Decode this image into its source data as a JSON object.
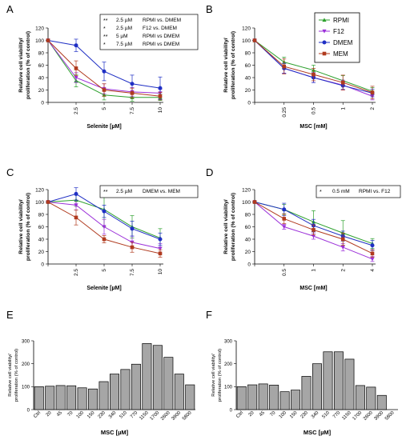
{
  "colors": {
    "RPMI": "#2ca02c",
    "F12": "#9b30d9",
    "DMEM": "#1f2fc4",
    "MEM": "#b03a1e",
    "bar": "#a6a6a6"
  },
  "chart_data": [
    {
      "id": "A",
      "panel_label": "A",
      "type": "line",
      "x": [
        "0",
        "2.5",
        "5",
        "7.5",
        "10"
      ],
      "xlabel": "Selenite [µM]",
      "ylabel": "Relative cell viability/\nproliferation (% of control)",
      "ylim": [
        0,
        120
      ],
      "yticks": [
        0,
        20,
        40,
        60,
        80,
        100,
        120
      ],
      "xticklabels": [
        "",
        "2.5",
        "5",
        "7.5",
        "10"
      ],
      "series": [
        {
          "name": "RPMI",
          "values": [
            100,
            35,
            12,
            8,
            8
          ],
          "errors": [
            0,
            10,
            8,
            6,
            5
          ]
        },
        {
          "name": "F12",
          "values": [
            100,
            40,
            22,
            17,
            15
          ],
          "errors": [
            0,
            8,
            8,
            7,
            6
          ]
        },
        {
          "name": "DMEM",
          "values": [
            100,
            92,
            50,
            30,
            23
          ],
          "errors": [
            0,
            10,
            15,
            14,
            18
          ]
        },
        {
          "name": "MEM",
          "values": [
            100,
            55,
            20,
            15,
            10
          ],
          "errors": [
            0,
            12,
            10,
            8,
            6
          ]
        }
      ],
      "annotations": [
        {
          "stars": "**",
          "dose": "2.5 µM",
          "comparison": "RPMI vs. DMEM"
        },
        {
          "stars": "*",
          "dose": "2.5 µM",
          "comparison": "F12 vs. DMEM"
        },
        {
          "stars": "**",
          "dose": "5 µM",
          "comparison": "RPMI vs DMEM"
        },
        {
          "stars": "*",
          "dose": "7.5 µM",
          "comparison": "RPMI vs DMEM"
        }
      ]
    },
    {
      "id": "B",
      "panel_label": "B",
      "type": "line",
      "x": [
        "0",
        "0.25",
        "0.5",
        "1",
        "2"
      ],
      "xlabel": "MSC [mM]",
      "ylabel": "Relative cell viability/\nproliferation (% of control)",
      "ylim": [
        0,
        120
      ],
      "yticks": [
        0,
        20,
        40,
        60,
        80,
        100,
        120
      ],
      "xticklabels": [
        "",
        "0.25",
        "0.5",
        "1",
        "2"
      ],
      "legend": [
        "RPMI",
        "F12",
        "DMEM",
        "MEM"
      ],
      "series": [
        {
          "name": "RPMI",
          "values": [
            100,
            65,
            52,
            35,
            18
          ],
          "errors": [
            0,
            8,
            8,
            8,
            6
          ]
        },
        {
          "name": "F12",
          "values": [
            100,
            55,
            40,
            28,
            10
          ],
          "errors": [
            0,
            8,
            8,
            8,
            6
          ]
        },
        {
          "name": "DMEM",
          "values": [
            100,
            55,
            40,
            27,
            15
          ],
          "errors": [
            0,
            8,
            8,
            6,
            6
          ]
        },
        {
          "name": "MEM",
          "values": [
            100,
            58,
            45,
            32,
            16
          ],
          "errors": [
            0,
            12,
            10,
            12,
            10
          ]
        }
      ],
      "annotations": []
    },
    {
      "id": "C",
      "panel_label": "C",
      "type": "line",
      "x": [
        "0",
        "2.5",
        "5",
        "7.5",
        "10"
      ],
      "xlabel": "Selenite [µM]",
      "ylabel": "Relative cell viability/\nproliferation (% of control)",
      "ylim": [
        0,
        120
      ],
      "yticks": [
        0,
        20,
        40,
        60,
        80,
        100,
        120
      ],
      "xticklabels": [
        "",
        "2.5",
        "5",
        "7.5",
        "10"
      ],
      "series": [
        {
          "name": "RPMI",
          "values": [
            100,
            103,
            88,
            60,
            42
          ],
          "errors": [
            0,
            10,
            28,
            18,
            15
          ]
        },
        {
          "name": "F12",
          "values": [
            100,
            95,
            60,
            35,
            25
          ],
          "errors": [
            0,
            8,
            12,
            10,
            8
          ]
        },
        {
          "name": "DMEM",
          "values": [
            100,
            113,
            85,
            57,
            40
          ],
          "errors": [
            0,
            10,
            10,
            12,
            10
          ]
        },
        {
          "name": "MEM",
          "values": [
            100,
            75,
            40,
            27,
            17
          ],
          "errors": [
            0,
            12,
            6,
            8,
            6
          ]
        }
      ],
      "annotations": [
        {
          "stars": "**",
          "dose": "2.5 µM",
          "comparison": "DMEM vs. MEM"
        }
      ]
    },
    {
      "id": "D",
      "panel_label": "D",
      "type": "line",
      "x": [
        "0",
        "0.5",
        "1",
        "2",
        "4"
      ],
      "xlabel": "MSC [mM]",
      "ylabel": "Relative cell viability/\nproliferation (% of control)",
      "ylim": [
        0,
        120
      ],
      "yticks": [
        0,
        20,
        40,
        60,
        80,
        100,
        120
      ],
      "xticklabels": [
        "",
        "0.5",
        "1",
        "2",
        "4"
      ],
      "series": [
        {
          "name": "RPMI",
          "values": [
            100,
            88,
            68,
            50,
            33
          ],
          "errors": [
            0,
            8,
            18,
            20,
            8
          ]
        },
        {
          "name": "F12",
          "values": [
            100,
            60,
            45,
            27,
            8
          ],
          "errors": [
            0,
            4,
            5,
            6,
            4
          ]
        },
        {
          "name": "DMEM",
          "values": [
            100,
            88,
            62,
            45,
            30
          ],
          "errors": [
            0,
            10,
            10,
            8,
            8
          ]
        },
        {
          "name": "MEM",
          "values": [
            100,
            73,
            55,
            40,
            17
          ],
          "errors": [
            0,
            8,
            8,
            10,
            6
          ]
        }
      ],
      "annotations": [
        {
          "stars": "*",
          "dose": "0.5 mM",
          "comparison": "RPMI vs. F12"
        }
      ]
    },
    {
      "id": "E",
      "panel_label": "E",
      "type": "bar",
      "categories": [
        "Ctrl",
        "20",
        "45",
        "70",
        "100",
        "150",
        "230",
        "340",
        "510",
        "770",
        "1150",
        "1700",
        "2600",
        "3900",
        "5800"
      ],
      "values": [
        100,
        102,
        105,
        104,
        95,
        90,
        122,
        155,
        175,
        198,
        288,
        280,
        228,
        155,
        108
      ],
      "xlabel": "MSC [µM]",
      "ylabel": "Relative cell viability/\nproliferation (% of control)",
      "ylim": [
        0,
        300
      ],
      "yticks": [
        0,
        100,
        200,
        300
      ]
    },
    {
      "id": "F",
      "panel_label": "F",
      "type": "bar",
      "categories": [
        "Ctrl",
        "20",
        "45",
        "70",
        "100",
        "150",
        "230",
        "340",
        "510",
        "770",
        "1150",
        "1700",
        "2600",
        "3900",
        "5800"
      ],
      "values": [
        100,
        108,
        112,
        107,
        78,
        85,
        145,
        200,
        252,
        252,
        220,
        105,
        98,
        62,
        0
      ],
      "xlabel": "MSC [µM]",
      "ylabel": "Relative cell viability/\nproliferation (% of control)",
      "ylim": [
        0,
        300
      ],
      "yticks": [
        0,
        100,
        200,
        300
      ]
    }
  ]
}
